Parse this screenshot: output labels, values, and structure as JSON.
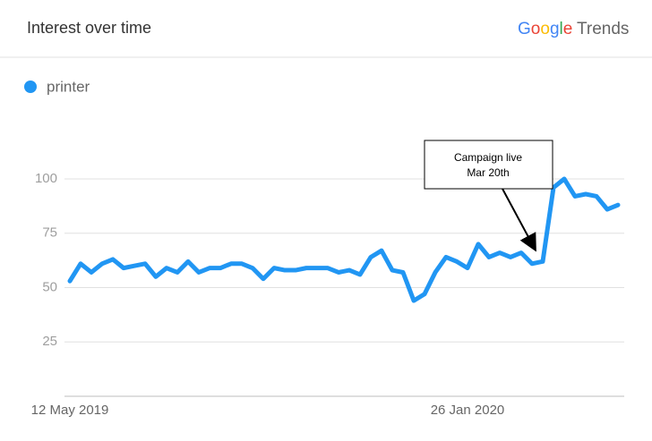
{
  "chart_data": {
    "type": "line",
    "title": "Interest over time",
    "logo": {
      "brand": "Google",
      "product": "Trends"
    },
    "categories": [
      "12 May 2019",
      null,
      null,
      null,
      null,
      null,
      null,
      null,
      null,
      null,
      null,
      null,
      null,
      null,
      null,
      null,
      null,
      null,
      null,
      null,
      null,
      null,
      null,
      null,
      null,
      null,
      null,
      null,
      null,
      null,
      null,
      null,
      null,
      null,
      null,
      null,
      null,
      "26 Jan 2020",
      null,
      null,
      null,
      null,
      null,
      null,
      null,
      null,
      null,
      null,
      null,
      null,
      null,
      null
    ],
    "series": [
      {
        "name": "printer",
        "color": "#2196f3",
        "values": [
          53,
          61,
          57,
          61,
          63,
          59,
          60,
          61,
          55,
          59,
          57,
          62,
          57,
          59,
          59,
          61,
          61,
          59,
          54,
          59,
          58,
          58,
          59,
          59,
          59,
          57,
          58,
          56,
          64,
          67,
          58,
          57,
          44,
          47,
          57,
          64,
          62,
          59,
          70,
          64,
          66,
          64,
          66,
          61,
          62,
          96,
          100,
          92,
          93,
          92,
          86,
          88
        ]
      }
    ],
    "ylim": [
      0,
      100
    ],
    "yticks": [
      25,
      50,
      75,
      100
    ],
    "grid": true,
    "annotation": {
      "lines": [
        "Campaign live",
        "Mar 20th"
      ]
    }
  }
}
